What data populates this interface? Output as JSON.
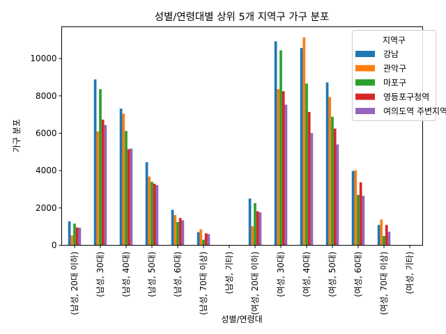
{
  "chart_data": {
    "type": "bar",
    "title": "성별/연령대별 상위 5개 지역구 가구 분포",
    "xlabel": "성별/연령대",
    "ylabel": "가구 분포",
    "ylim": [
      0,
      11700
    ],
    "yticks": [
      0,
      2000,
      4000,
      6000,
      8000,
      10000
    ],
    "grid": false,
    "legend": {
      "title": "지역구",
      "placement": "top-right"
    },
    "categories": [
      "(남성, 20대 이하)",
      "(남성, 30대)",
      "(남성, 40대)",
      "(남성, 50대)",
      "(남성, 60대)",
      "(남성, 70대 이상)",
      "(남성, 기타)",
      "(여성, 20대 이하)",
      "(여성, 30대)",
      "(여성, 40대)",
      "(여성, 50대)",
      "(여성, 60대)",
      "(여성, 70대 이상)",
      "(여성, 기타)"
    ],
    "series": [
      {
        "name": "강남",
        "color": "#1f77b4",
        "values": [
          1280,
          8880,
          7320,
          4450,
          1900,
          700,
          0,
          2500,
          10920,
          10560,
          8720,
          3980,
          1090,
          0
        ]
      },
      {
        "name": "관악구",
        "color": "#ff7f0e",
        "values": [
          530,
          6100,
          7050,
          3680,
          1620,
          860,
          0,
          1020,
          8360,
          11140,
          7940,
          4020,
          1380,
          0
        ]
      },
      {
        "name": "마포구",
        "color": "#2ca02c",
        "values": [
          1160,
          8360,
          6120,
          3400,
          1250,
          300,
          0,
          2260,
          10440,
          8660,
          6880,
          2700,
          500,
          0
        ]
      },
      {
        "name": "영등포구청역",
        "color": "#d62728",
        "values": [
          950,
          6730,
          5150,
          3300,
          1460,
          640,
          0,
          1820,
          8250,
          7140,
          6250,
          3370,
          1090,
          0
        ]
      },
      {
        "name": "여의도역 주변지역",
        "color": "#9467bd",
        "values": [
          940,
          6440,
          5180,
          3220,
          1340,
          600,
          0,
          1760,
          7530,
          6010,
          5400,
          2650,
          720,
          0
        ]
      }
    ]
  }
}
